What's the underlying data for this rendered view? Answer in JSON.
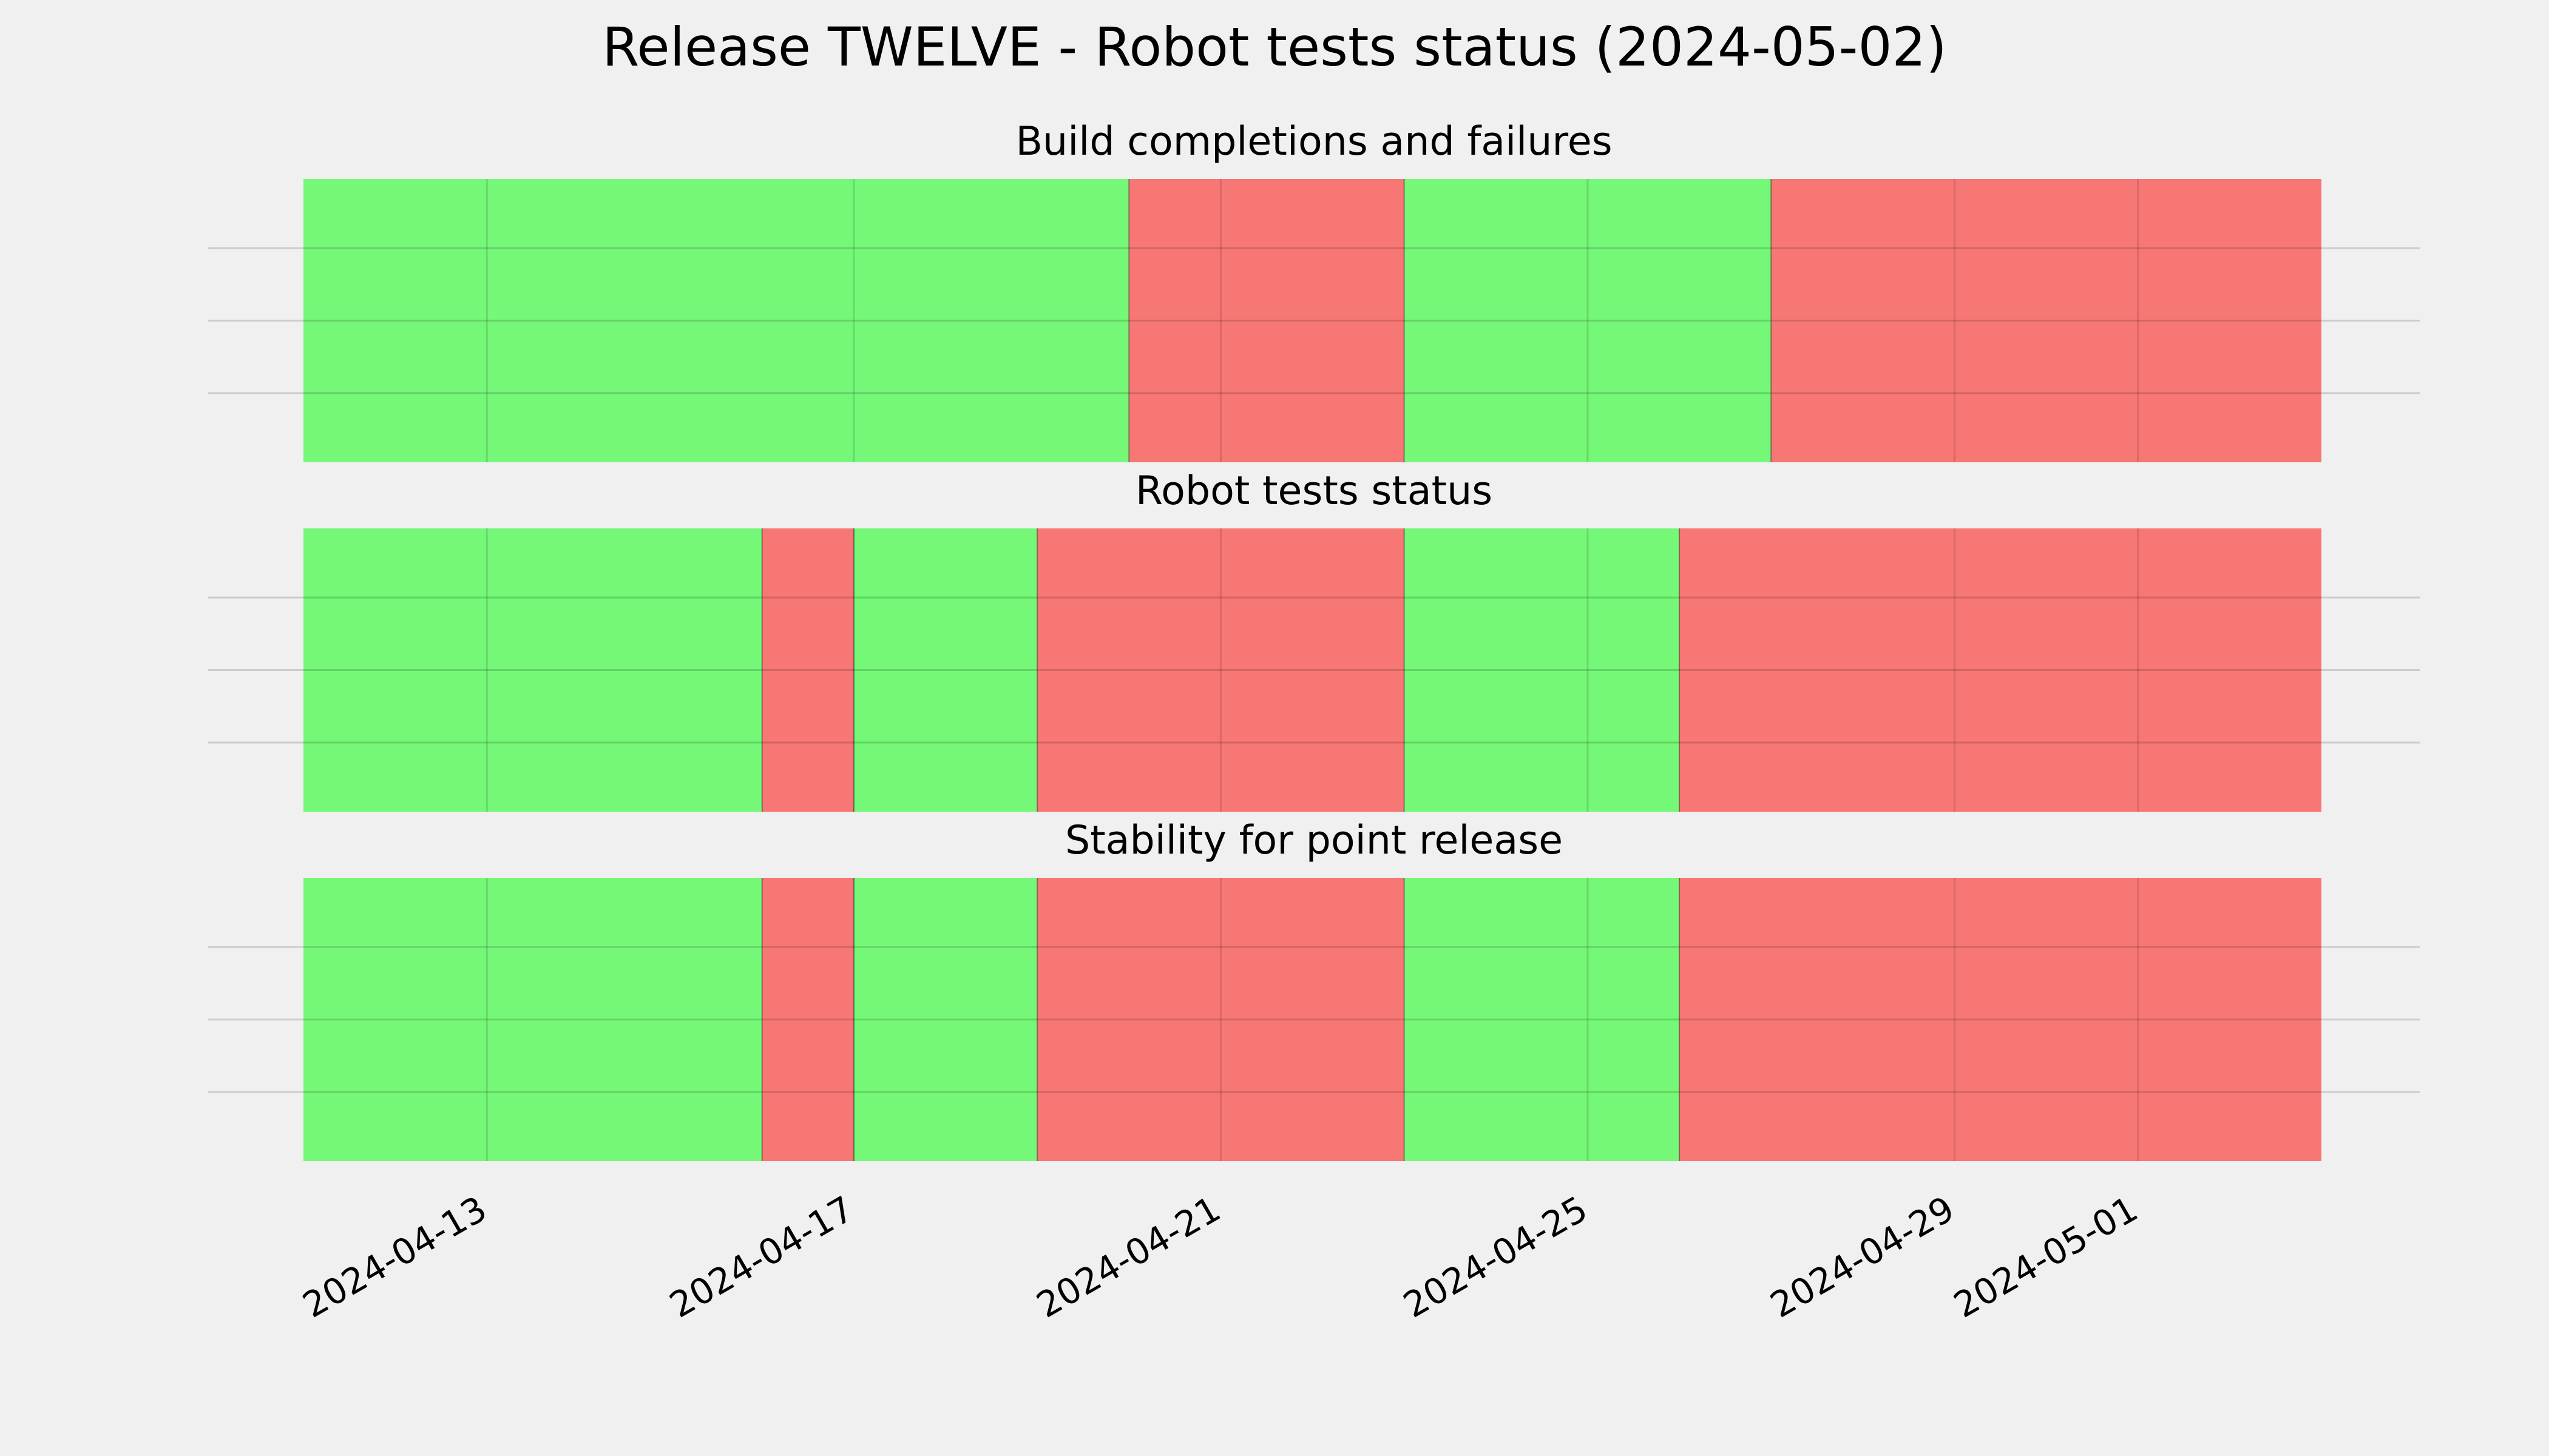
{
  "chart_data": {
    "type": "bar",
    "title": "Release TWELVE - Robot tests status (2024-05-02)",
    "x_axis": {
      "type": "date",
      "range": [
        "2024-04-11",
        "2024-05-03"
      ],
      "tick_labels": [
        "2024-04-13",
        "2024-04-17",
        "2024-04-21",
        "2024-04-25",
        "2024-04-29",
        "2024-05-01"
      ]
    },
    "y_axis": {
      "tick_labels": []
    },
    "grid": true,
    "colors": {
      "pass": "#75f778",
      "fail": "#f77775",
      "background": "#f0f0f0"
    },
    "panels": [
      {
        "title": "Build completions and failures",
        "segments": [
          {
            "start": "2024-04-11",
            "end": "2024-04-20",
            "status": "pass"
          },
          {
            "start": "2024-04-20",
            "end": "2024-04-23",
            "status": "fail"
          },
          {
            "start": "2024-04-23",
            "end": "2024-04-27",
            "status": "pass"
          },
          {
            "start": "2024-04-27",
            "end": "2024-05-03",
            "status": "fail"
          }
        ]
      },
      {
        "title": "Robot tests status",
        "segments": [
          {
            "start": "2024-04-11",
            "end": "2024-04-16",
            "status": "pass"
          },
          {
            "start": "2024-04-16",
            "end": "2024-04-17",
            "status": "fail"
          },
          {
            "start": "2024-04-17",
            "end": "2024-04-19",
            "status": "pass"
          },
          {
            "start": "2024-04-19",
            "end": "2024-04-23",
            "status": "fail"
          },
          {
            "start": "2024-04-23",
            "end": "2024-04-26",
            "status": "pass"
          },
          {
            "start": "2024-04-26",
            "end": "2024-05-03",
            "status": "fail"
          }
        ]
      },
      {
        "title": "Stability for point release",
        "segments": [
          {
            "start": "2024-04-11",
            "end": "2024-04-16",
            "status": "pass"
          },
          {
            "start": "2024-04-16",
            "end": "2024-04-17",
            "status": "fail"
          },
          {
            "start": "2024-04-17",
            "end": "2024-04-19",
            "status": "pass"
          },
          {
            "start": "2024-04-19",
            "end": "2024-04-23",
            "status": "fail"
          },
          {
            "start": "2024-04-23",
            "end": "2024-04-26",
            "status": "pass"
          },
          {
            "start": "2024-04-26",
            "end": "2024-05-03",
            "status": "fail"
          }
        ]
      }
    ]
  }
}
